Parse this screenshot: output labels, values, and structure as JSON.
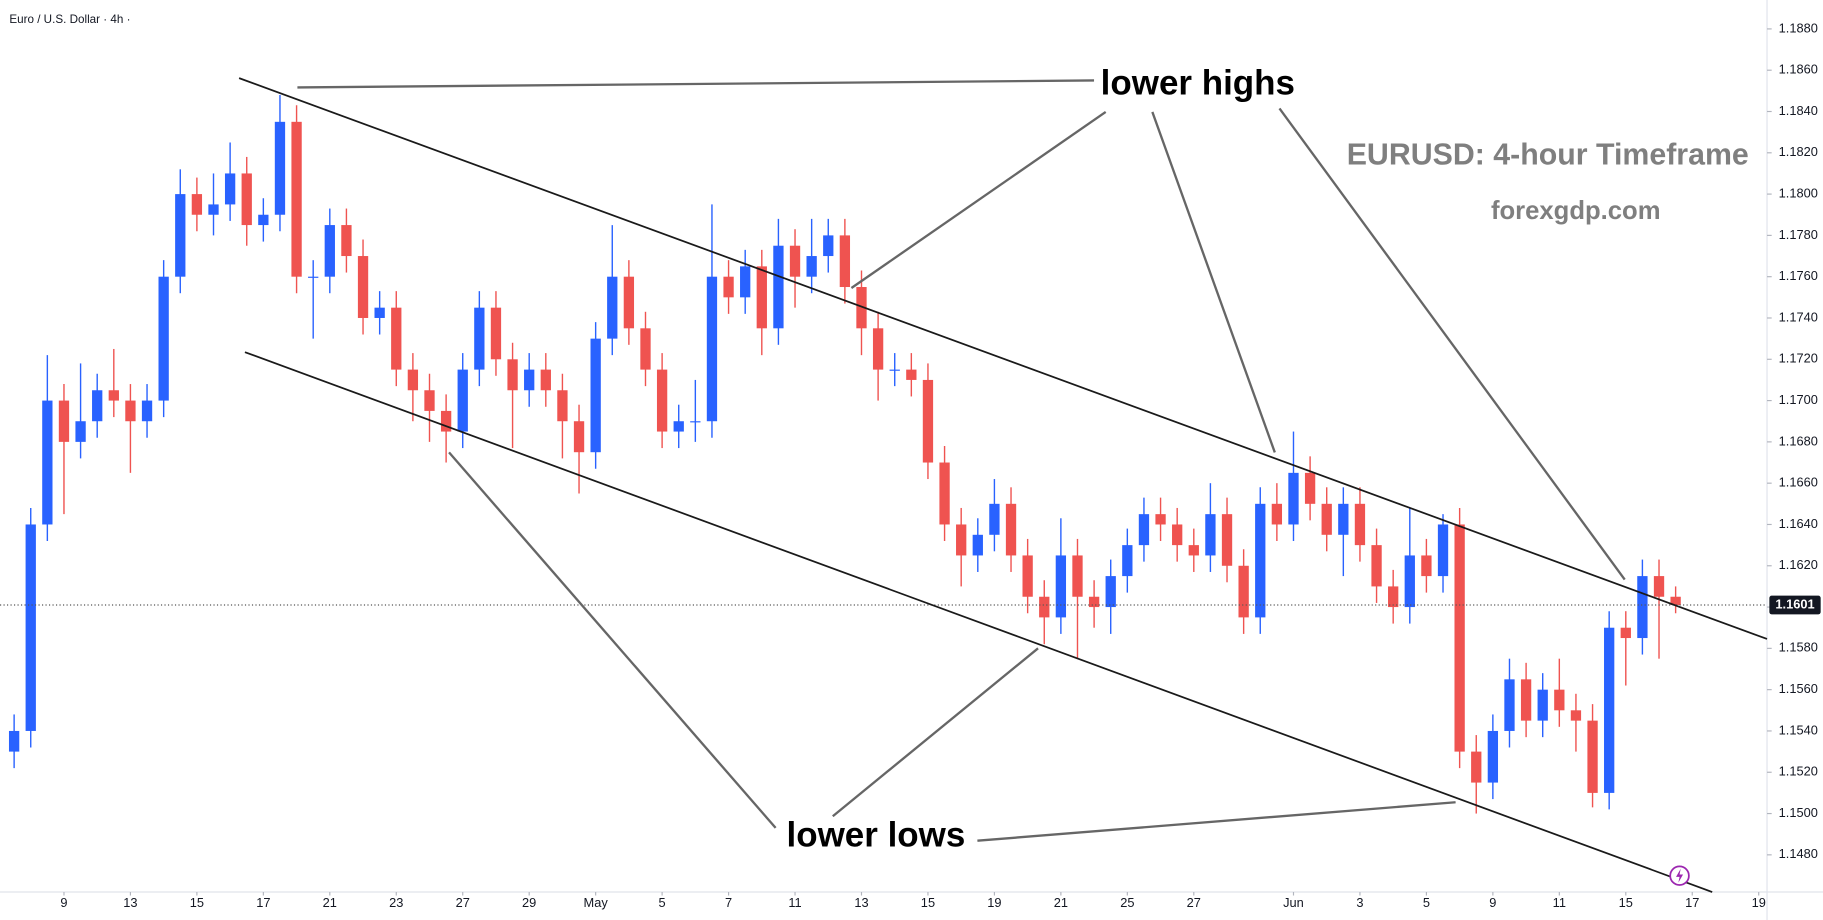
{
  "chart_data": {
    "type": "candlestick",
    "title": "Euro / U.S. Dollar · 4h ·",
    "watermark_title": "EURUSD: 4-hour Timeframe",
    "watermark_site": "forexgdp.com",
    "annotations": {
      "upper": "lower highs",
      "lower": "lower lows"
    },
    "up_color": "#2962ff",
    "down_color": "#ef5350",
    "last_price": 1.1601,
    "grid": false,
    "xlim": [
      -0.85,
      105.5
    ],
    "xticks": [
      {
        "value": 3,
        "label": "9"
      },
      {
        "value": 7,
        "label": "13"
      },
      {
        "value": 11,
        "label": "15"
      },
      {
        "value": 15,
        "label": "17"
      },
      {
        "value": 19,
        "label": "21"
      },
      {
        "value": 23,
        "label": "23"
      },
      {
        "value": 27,
        "label": "27"
      },
      {
        "value": 31,
        "label": "29"
      },
      {
        "value": 35,
        "label": "May"
      },
      {
        "value": 39,
        "label": "5"
      },
      {
        "value": 43,
        "label": "7"
      },
      {
        "value": 47,
        "label": "11"
      },
      {
        "value": 51,
        "label": "13"
      },
      {
        "value": 55,
        "label": "15"
      },
      {
        "value": 59,
        "label": "19"
      },
      {
        "value": 63,
        "label": "21"
      },
      {
        "value": 67,
        "label": "25"
      },
      {
        "value": 71,
        "label": "27"
      },
      {
        "value": 77,
        "label": "Jun"
      },
      {
        "value": 81,
        "label": "3"
      },
      {
        "value": 85,
        "label": "5"
      },
      {
        "value": 89,
        "label": "9"
      },
      {
        "value": 93,
        "label": "11"
      },
      {
        "value": 97,
        "label": "15"
      },
      {
        "value": 101,
        "label": "17"
      },
      {
        "value": 105,
        "label": "19"
      }
    ],
    "ylim": [
      1.1462,
      1.1894
    ],
    "yticks": [
      {
        "value": 1.148,
        "label": "1.1480"
      },
      {
        "value": 1.15,
        "label": "1.1500"
      },
      {
        "value": 1.152,
        "label": "1.1520"
      },
      {
        "value": 1.154,
        "label": "1.1540"
      },
      {
        "value": 1.156,
        "label": "1.1560"
      },
      {
        "value": 1.158,
        "label": "1.1580"
      },
      {
        "value": 1.16,
        "label": "1.1600"
      },
      {
        "value": 1.162,
        "label": "1.1620"
      },
      {
        "value": 1.164,
        "label": "1.1640"
      },
      {
        "value": 1.166,
        "label": "1.1660"
      },
      {
        "value": 1.168,
        "label": "1.1680"
      },
      {
        "value": 1.17,
        "label": "1.1700"
      },
      {
        "value": 1.172,
        "label": "1.1720"
      },
      {
        "value": 1.174,
        "label": "1.1740"
      },
      {
        "value": 1.176,
        "label": "1.1760"
      },
      {
        "value": 1.178,
        "label": "1.1780"
      },
      {
        "value": 1.18,
        "label": "1.1800"
      },
      {
        "value": 1.182,
        "label": "1.1820"
      },
      {
        "value": 1.184,
        "label": "1.1840"
      },
      {
        "value": 1.186,
        "label": "1.1860"
      },
      {
        "value": 1.188,
        "label": "1.1880"
      }
    ],
    "open": [
      1.153,
      1.154,
      1.164,
      1.17,
      1.168,
      1.169,
      1.1705,
      1.17,
      1.169,
      1.17,
      1.176,
      1.18,
      1.179,
      1.1795,
      1.181,
      1.1785,
      1.179,
      1.1835,
      1.176,
      1.176,
      1.1785,
      1.177,
      1.174,
      1.1745,
      1.1715,
      1.1705,
      1.1695,
      1.1685,
      1.1715,
      1.1745,
      1.172,
      1.1705,
      1.1715,
      1.1705,
      1.169,
      1.1675,
      1.173,
      1.176,
      1.1735,
      1.1715,
      1.1685,
      1.169,
      1.169,
      1.176,
      1.175,
      1.1765,
      1.1735,
      1.1775,
      1.176,
      1.177,
      1.178,
      1.1755,
      1.1735,
      1.1715,
      1.1715,
      1.171,
      1.167,
      1.164,
      1.1625,
      1.1635,
      1.165,
      1.1625,
      1.1605,
      1.1595,
      1.1625,
      1.1605,
      1.16,
      1.1615,
      1.163,
      1.1645,
      1.164,
      1.163,
      1.1625,
      1.1645,
      1.162,
      1.1595,
      1.165,
      1.164,
      1.1665,
      1.165,
      1.1635,
      1.165,
      1.163,
      1.161,
      1.16,
      1.1625,
      1.1615,
      1.164,
      1.153,
      1.1515,
      1.154,
      1.1565,
      1.1545,
      1.156,
      1.155,
      1.1545,
      1.151,
      1.159,
      1.1585,
      1.1615,
      1.1605
    ],
    "high": [
      1.1548,
      1.1648,
      1.1722,
      1.1708,
      1.1718,
      1.1713,
      1.1725,
      1.1708,
      1.1708,
      1.1768,
      1.1812,
      1.1808,
      1.181,
      1.1825,
      1.1818,
      1.1798,
      1.1848,
      1.1843,
      1.1768,
      1.1793,
      1.1793,
      1.1778,
      1.1753,
      1.1753,
      1.1723,
      1.1713,
      1.1703,
      1.1723,
      1.1753,
      1.1753,
      1.1728,
      1.1723,
      1.1723,
      1.1713,
      1.1698,
      1.1738,
      1.1785,
      1.1768,
      1.1743,
      1.1723,
      1.1698,
      1.171,
      1.1795,
      1.1768,
      1.1773,
      1.1773,
      1.1788,
      1.1783,
      1.1788,
      1.1788,
      1.1788,
      1.1763,
      1.1743,
      1.1723,
      1.1723,
      1.1718,
      1.1678,
      1.1648,
      1.1643,
      1.1662,
      1.1658,
      1.1633,
      1.1613,
      1.1643,
      1.1633,
      1.1613,
      1.1623,
      1.1638,
      1.1653,
      1.1653,
      1.1648,
      1.1638,
      1.166,
      1.1653,
      1.1628,
      1.1658,
      1.166,
      1.1685,
      1.1673,
      1.1658,
      1.1658,
      1.1658,
      1.1638,
      1.1618,
      1.1648,
      1.1633,
      1.1645,
      1.1648,
      1.1538,
      1.1548,
      1.1575,
      1.1573,
      1.1568,
      1.1575,
      1.1558,
      1.1553,
      1.1598,
      1.1598,
      1.1623,
      1.1623,
      1.161
    ],
    "low": [
      1.1522,
      1.1532,
      1.1632,
      1.1645,
      1.1672,
      1.1682,
      1.1692,
      1.1665,
      1.1682,
      1.1692,
      1.1752,
      1.1782,
      1.178,
      1.1787,
      1.1775,
      1.1777,
      1.1782,
      1.1752,
      1.173,
      1.1752,
      1.1762,
      1.1732,
      1.1732,
      1.1707,
      1.169,
      1.168,
      1.167,
      1.1677,
      1.1707,
      1.1712,
      1.1677,
      1.1697,
      1.1697,
      1.1672,
      1.1655,
      1.1667,
      1.1722,
      1.1727,
      1.1707,
      1.1677,
      1.1677,
      1.168,
      1.1682,
      1.1742,
      1.1742,
      1.1722,
      1.1727,
      1.1745,
      1.1752,
      1.1762,
      1.1747,
      1.1722,
      1.17,
      1.1707,
      1.1702,
      1.1662,
      1.1632,
      1.161,
      1.1617,
      1.1627,
      1.1617,
      1.1597,
      1.1582,
      1.1587,
      1.1575,
      1.159,
      1.1587,
      1.1607,
      1.1622,
      1.1632,
      1.1622,
      1.1617,
      1.1617,
      1.1612,
      1.1587,
      1.1587,
      1.1632,
      1.1632,
      1.1642,
      1.1627,
      1.1615,
      1.1622,
      1.1602,
      1.1592,
      1.1592,
      1.1607,
      1.1607,
      1.1522,
      1.15,
      1.1507,
      1.1532,
      1.1537,
      1.1537,
      1.1542,
      1.153,
      1.1503,
      1.1502,
      1.1562,
      1.1577,
      1.1575,
      1.1597
    ],
    "close": [
      1.154,
      1.164,
      1.17,
      1.168,
      1.169,
      1.1705,
      1.17,
      1.169,
      1.17,
      1.176,
      1.18,
      1.179,
      1.1795,
      1.181,
      1.1785,
      1.179,
      1.1835,
      1.176,
      1.176,
      1.1785,
      1.177,
      1.174,
      1.1745,
      1.1715,
      1.1705,
      1.1695,
      1.1685,
      1.1715,
      1.1745,
      1.172,
      1.1705,
      1.1715,
      1.1705,
      1.169,
      1.1675,
      1.173,
      1.176,
      1.1735,
      1.1715,
      1.1685,
      1.169,
      1.169,
      1.176,
      1.175,
      1.1765,
      1.1735,
      1.1775,
      1.176,
      1.177,
      1.178,
      1.1755,
      1.1735,
      1.1715,
      1.1715,
      1.171,
      1.167,
      1.164,
      1.1625,
      1.1635,
      1.165,
      1.1625,
      1.1605,
      1.1595,
      1.1625,
      1.1605,
      1.16,
      1.1615,
      1.163,
      1.1645,
      1.164,
      1.163,
      1.1625,
      1.1645,
      1.162,
      1.1595,
      1.165,
      1.164,
      1.1665,
      1.165,
      1.1635,
      1.165,
      1.163,
      1.161,
      1.16,
      1.1625,
      1.1615,
      1.164,
      1.153,
      1.1515,
      1.154,
      1.1565,
      1.1545,
      1.156,
      1.155,
      1.1545,
      1.151,
      1.159,
      1.1585,
      1.1615,
      1.1605,
      1.1601
    ]
  }
}
